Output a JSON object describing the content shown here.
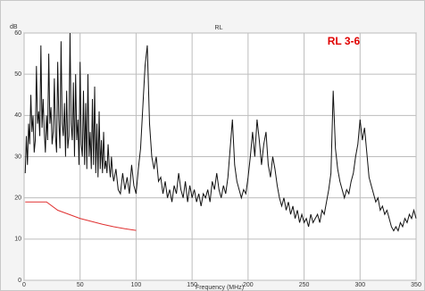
{
  "chart_data": {
    "type": "line",
    "title": "RL",
    "y_label": "dB",
    "x_label": "Frequency (MHz)",
    "annotation": "RL 3-6",
    "annotation_color": "#e00000",
    "xlim": [
      0,
      350
    ],
    "xticks": [
      0,
      50,
      100,
      150,
      200,
      250,
      300,
      350
    ],
    "ylim": [
      0,
      60
    ],
    "yticks": [
      0,
      10,
      20,
      30,
      40,
      50,
      60
    ],
    "grid": true,
    "series": [
      {
        "color": "#111111",
        "x": [
          1,
          2,
          3,
          4,
          5,
          6,
          7,
          8,
          9,
          10,
          11,
          12,
          13,
          14,
          15,
          16,
          17,
          18,
          19,
          20,
          21,
          22,
          23,
          24,
          25,
          26,
          27,
          28,
          29,
          30,
          31,
          32,
          33,
          34,
          35,
          36,
          37,
          38,
          39,
          40,
          41,
          42,
          43,
          44,
          45,
          46,
          47,
          48,
          49,
          50,
          51,
          52,
          53,
          54,
          55,
          56,
          57,
          58,
          59,
          60,
          61,
          62,
          63,
          64,
          65,
          66,
          67,
          68,
          69,
          70,
          71,
          72,
          73,
          74,
          75,
          76,
          77,
          78,
          79,
          80,
          82,
          84,
          86,
          88,
          90,
          92,
          94,
          96,
          98,
          100,
          102,
          104,
          106,
          108,
          110,
          112,
          114,
          116,
          118,
          120,
          122,
          124,
          126,
          128,
          130,
          132,
          134,
          136,
          138,
          140,
          142,
          144,
          146,
          148,
          150,
          152,
          154,
          156,
          158,
          160,
          162,
          164,
          166,
          168,
          170,
          172,
          174,
          176,
          178,
          180,
          182,
          184,
          186,
          188,
          190,
          192,
          194,
          196,
          198,
          200,
          202,
          204,
          206,
          208,
          210,
          212,
          214,
          216,
          218,
          220,
          222,
          224,
          226,
          228,
          230,
          232,
          234,
          236,
          238,
          240,
          242,
          244,
          246,
          248,
          250,
          252,
          254,
          256,
          258,
          260,
          262,
          264,
          266,
          268,
          270,
          272,
          274,
          276,
          278,
          280,
          282,
          284,
          286,
          288,
          290,
          292,
          294,
          296,
          298,
          300,
          302,
          304,
          306,
          308,
          310,
          312,
          314,
          316,
          318,
          320,
          322,
          324,
          326,
          328,
          330,
          332,
          334,
          336,
          338,
          340,
          342,
          344,
          346,
          348,
          350
        ],
        "values": [
          26,
          35,
          28,
          38,
          33,
          45,
          36,
          40,
          31,
          34,
          52,
          38,
          41,
          35,
          57,
          37,
          44,
          36,
          31,
          40,
          34,
          55,
          38,
          42,
          33,
          36,
          49,
          35,
          31,
          53,
          39,
          32,
          58,
          38,
          35,
          43,
          30,
          46,
          32,
          35,
          60,
          38,
          34,
          48,
          30,
          50,
          34,
          39,
          28,
          53,
          33,
          30,
          46,
          28,
          43,
          27,
          50,
          30,
          36,
          27,
          44,
          28,
          47,
          26,
          38,
          25,
          41,
          27,
          34,
          26,
          36,
          27,
          29,
          26,
          33,
          28,
          25,
          30,
          26,
          24,
          27,
          22,
          21,
          26,
          22,
          25,
          21,
          28,
          23,
          21,
          27,
          32,
          42,
          52,
          57,
          38,
          30,
          27,
          30,
          24,
          25,
          21,
          24,
          20,
          22,
          19,
          23,
          21,
          26,
          22,
          20,
          24,
          19,
          23,
          20,
          22,
          19,
          21,
          18,
          21,
          20,
          22,
          19,
          24,
          22,
          26,
          22,
          20,
          23,
          21,
          25,
          32,
          39,
          28,
          24,
          22,
          20,
          22,
          21,
          25,
          30,
          36,
          30,
          39,
          34,
          28,
          33,
          36,
          28,
          25,
          30,
          27,
          23,
          20,
          18,
          20,
          17,
          19,
          16,
          18,
          15,
          17,
          14,
          16,
          14,
          15,
          13,
          16,
          14,
          15,
          16,
          14,
          17,
          16,
          19,
          22,
          26,
          46,
          32,
          27,
          24,
          22,
          20,
          22,
          21,
          24,
          26,
          30,
          33,
          39,
          34,
          37,
          31,
          25,
          23,
          21,
          19,
          20,
          17,
          18,
          16,
          17,
          15,
          13,
          12,
          13,
          12,
          14,
          13,
          15,
          14,
          16,
          15,
          17,
          15
        ]
      },
      {
        "color": "#e03030",
        "x": [
          1,
          10,
          20,
          30,
          40,
          50,
          60,
          70,
          80,
          90,
          100
        ],
        "values": [
          19,
          19,
          19,
          17,
          16,
          15,
          14.3,
          13.6,
          13,
          12.5,
          12.1
        ]
      }
    ]
  }
}
